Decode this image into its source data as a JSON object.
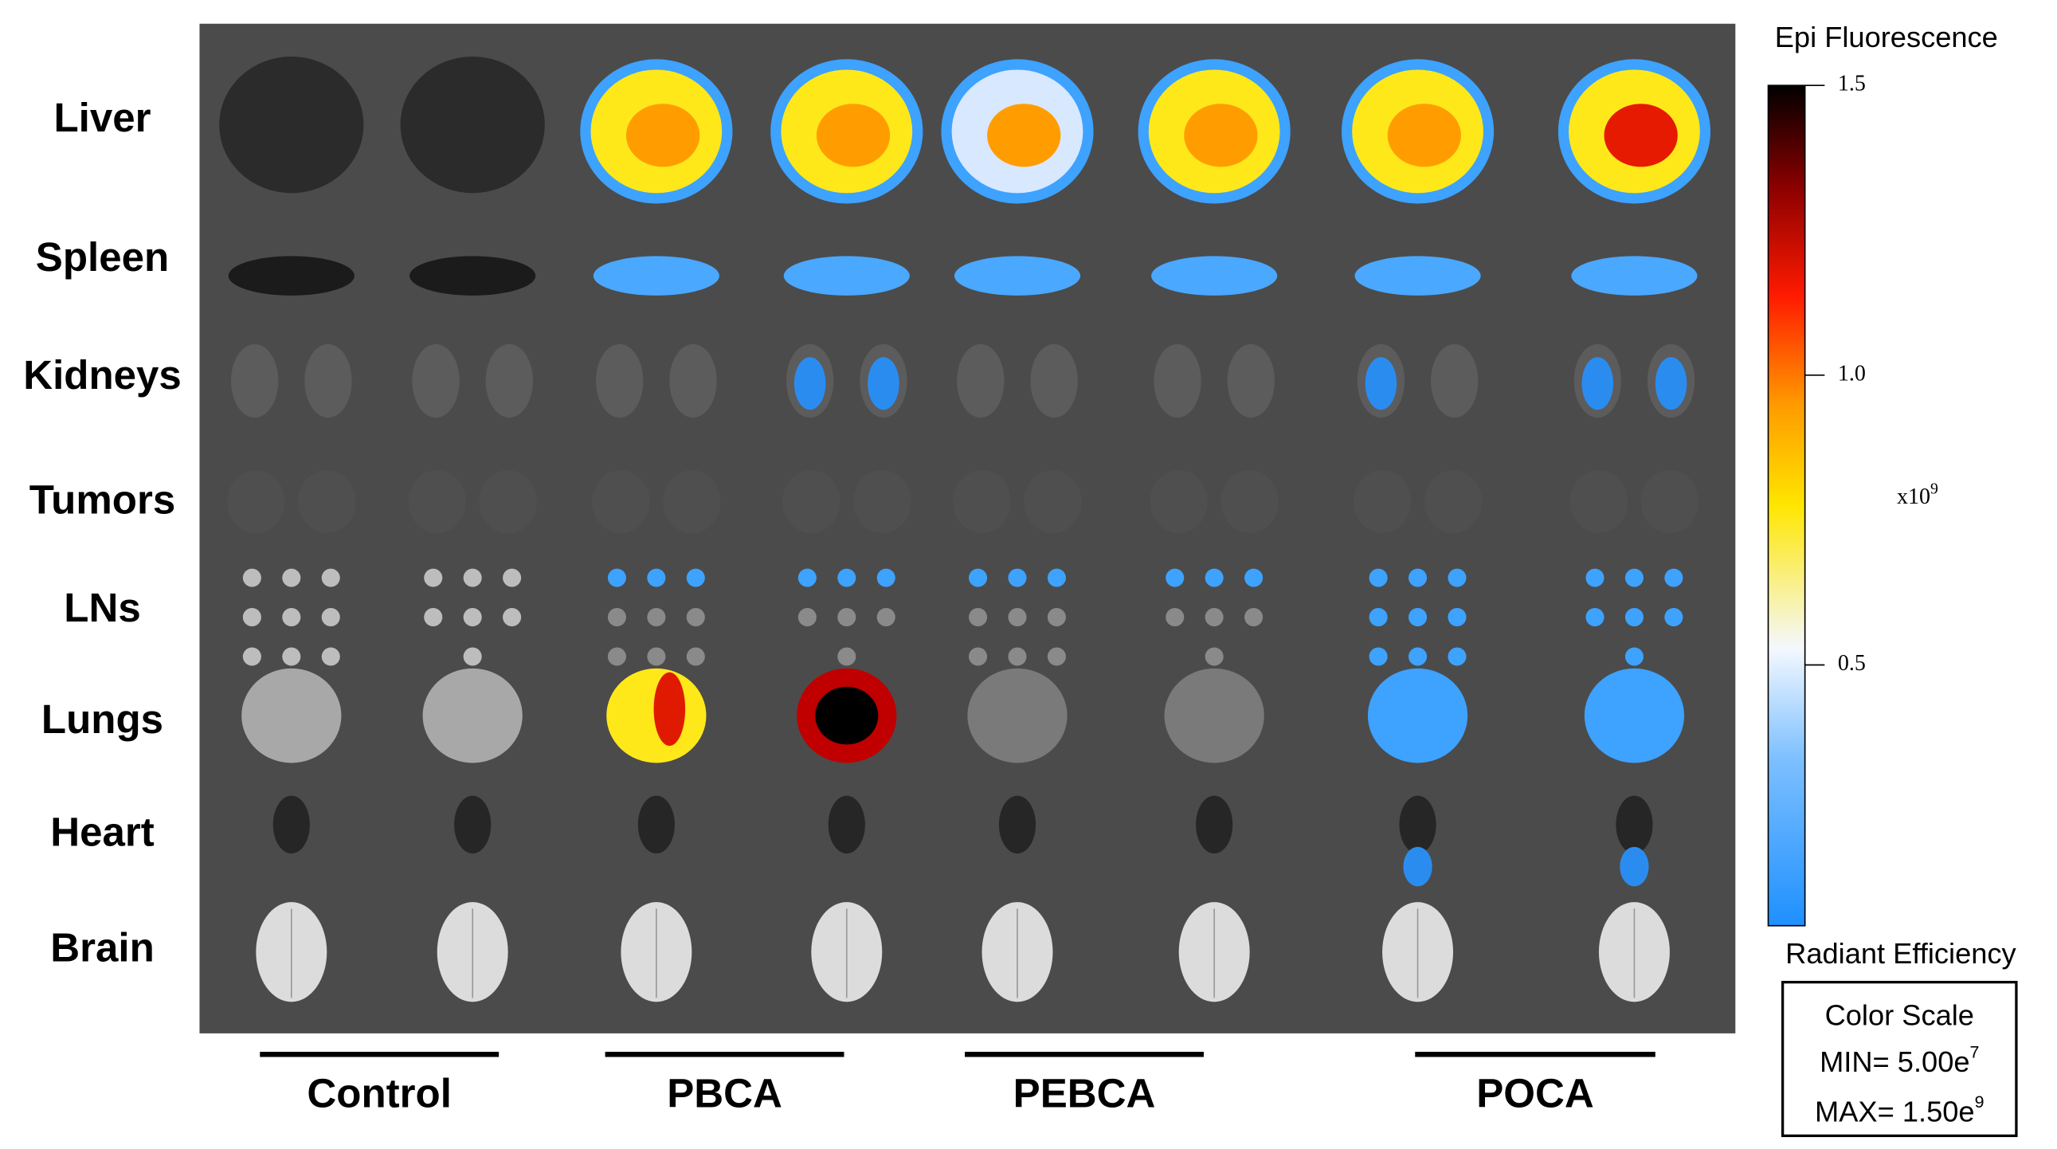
{
  "figure": {
    "row_labels": [
      "Liver",
      "Spleen",
      "Kidneys",
      "Tumors",
      "LNs",
      "Lungs",
      "Heart",
      "Brain"
    ],
    "groups": [
      "Control",
      "PBCA",
      "PEBCA",
      "POCA"
    ],
    "colorbar": {
      "title": "Epi Fluorescence",
      "range": [
        0.05,
        1.5
      ],
      "ticks": [
        {
          "value": 1.5,
          "label": "1.5"
        },
        {
          "value": 1.0,
          "label": "1.0"
        },
        {
          "value": 0.5,
          "label": "0.5"
        }
      ],
      "multiplier": {
        "base": "x10",
        "sup": "9"
      },
      "unit": "Radiant Efficiency"
    },
    "color_scale_box": {
      "title": "Color Scale",
      "min": {
        "text": "MIN= 5.00e",
        "sup": "7"
      },
      "max": {
        "text": "MAX= 1.50e",
        "sup": "9"
      }
    }
  }
}
